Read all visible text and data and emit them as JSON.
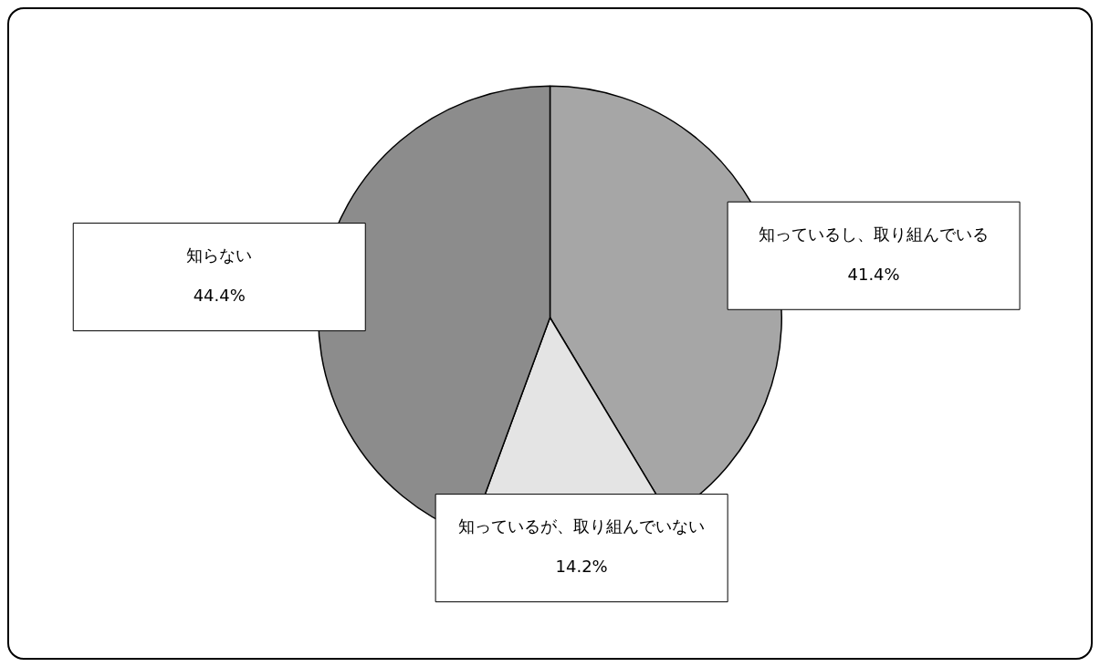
{
  "chart_data": {
    "type": "pie",
    "categories": [
      "知っているし、取り組んでいる",
      "知っているが、取り組んでいない",
      "知らない"
    ],
    "values": [
      41.4,
      14.2,
      44.4
    ],
    "value_labels": [
      "41.4%",
      "14.2%",
      "44.4%"
    ],
    "colors": [
      "#a6a6a6",
      "#e4e4e4",
      "#8c8c8c"
    ],
    "legend": false
  }
}
